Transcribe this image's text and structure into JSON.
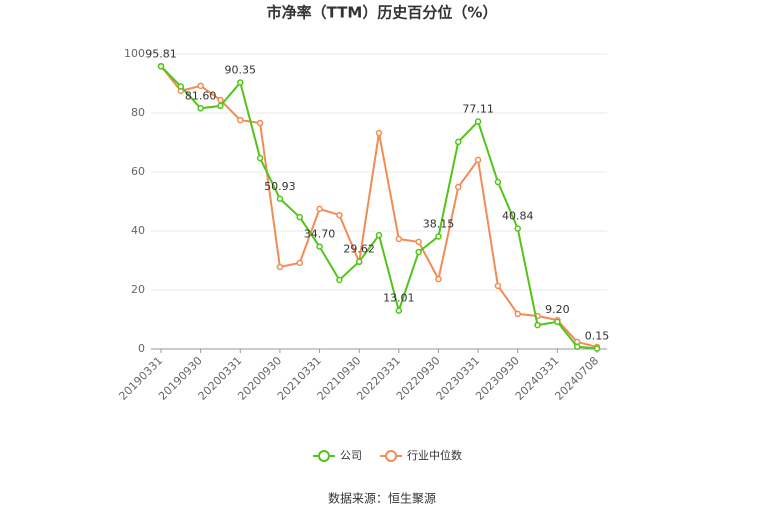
{
  "chart_data": {
    "type": "line",
    "title": "市净率（TTM）历史百分位（%）",
    "categories": [
      "20190331",
      null,
      "20190930",
      null,
      "20200331",
      null,
      "20200930",
      null,
      "20210331",
      null,
      "20210930",
      null,
      "20220331",
      null,
      "20220930",
      null,
      "20230331",
      null,
      "20230930",
      null,
      "20240331",
      null,
      "20240708"
    ],
    "series": [
      {
        "name": "公司",
        "color": "#52c41a",
        "values": [
          95.81,
          89,
          81.6,
          82.4,
          90.35,
          64.7,
          50.93,
          44.7,
          34.7,
          23.4,
          29.62,
          38.6,
          13.01,
          32.9,
          38.15,
          70.2,
          77.11,
          56.6,
          40.84,
          8.1,
          9.2,
          0.8,
          0.15
        ],
        "value_labels": [
          "95.81",
          null,
          "81.60",
          null,
          "90.35",
          null,
          "50.93",
          null,
          "34.70",
          null,
          "29.62",
          null,
          "13.01",
          null,
          "38.15",
          null,
          "77.11",
          null,
          "40.84",
          null,
          "9.20",
          null,
          "0.15"
        ]
      },
      {
        "name": "行业中位数",
        "color": "#f28c55",
        "values": [
          95.9,
          87.5,
          89.2,
          84.4,
          77.6,
          76.6,
          27.8,
          29.2,
          47.5,
          45.4,
          29.5,
          73.2,
          37.3,
          36.3,
          23.7,
          54.9,
          64.1,
          21.4,
          11.9,
          11.2,
          9.8,
          2.4,
          0.7
        ]
      }
    ],
    "ylim": [
      0,
      100
    ],
    "yticks": [
      0,
      20,
      40,
      60,
      80,
      100
    ],
    "grid": true,
    "source": "数据来源：恒生聚源"
  }
}
